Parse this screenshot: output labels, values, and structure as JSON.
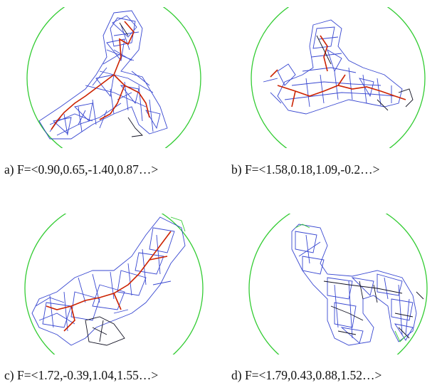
{
  "panels": [
    {
      "id": "a",
      "caption": "a) F=<0.90,0.65,-1.40,0.87…>"
    },
    {
      "id": "b",
      "caption": "b) F=<1.58,0.18,1.09,-0.2…>"
    },
    {
      "id": "c",
      "caption": "c)  F=<1.72,-0.39,1.04,1.55…>"
    },
    {
      "id": "d",
      "caption": "d) F=<1.79,0.43,0.88,1.52…>"
    }
  ],
  "colors": {
    "circle": "#33cc33",
    "mesh": "#2233cc",
    "backbone": "#cc2200",
    "dark": "#111122"
  }
}
